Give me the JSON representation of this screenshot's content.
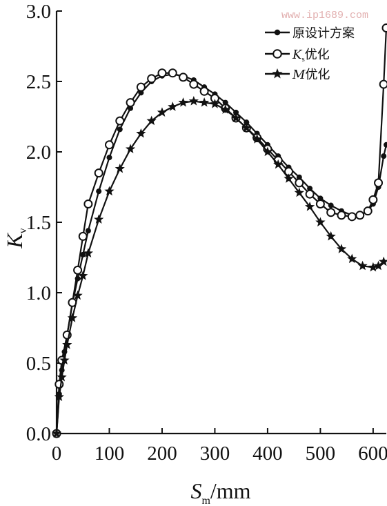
{
  "watermark": "www.ip1689.com",
  "chart_data": {
    "type": "line",
    "title": "",
    "xlabel": {
      "main": "S",
      "sub": "m",
      "unit": "/mm"
    },
    "ylabel": {
      "main": "K",
      "sub": "v"
    },
    "xlim": [
      0,
      625
    ],
    "ylim": [
      0.0,
      3.0
    ],
    "xticks": [
      0,
      100,
      200,
      300,
      400,
      500,
      600
    ],
    "yticks": [
      0.0,
      0.5,
      1.0,
      1.5,
      2.0,
      2.5,
      3.0
    ],
    "xtick_labels": [
      "0",
      "100",
      "200",
      "300",
      "400",
      "500",
      "600"
    ],
    "ytick_labels": [
      "0.0",
      "0.5",
      "1.0",
      "1.5",
      "2.0",
      "2.5",
      "3.0"
    ],
    "grid": false,
    "legend_position": "top-right",
    "series": [
      {
        "name": "原设计方案",
        "marker": "filled-circle",
        "x": [
          0,
          5,
          10,
          15,
          20,
          30,
          40,
          50,
          60,
          80,
          100,
          120,
          140,
          160,
          180,
          200,
          220,
          240,
          260,
          280,
          300,
          320,
          340,
          360,
          380,
          400,
          420,
          440,
          460,
          480,
          500,
          520,
          540,
          560,
          575,
          590,
          600,
          610,
          620,
          625
        ],
        "y": [
          0.0,
          0.28,
          0.45,
          0.58,
          0.7,
          0.92,
          1.1,
          1.27,
          1.44,
          1.72,
          1.96,
          2.16,
          2.31,
          2.42,
          2.5,
          2.54,
          2.55,
          2.54,
          2.51,
          2.46,
          2.41,
          2.35,
          2.28,
          2.21,
          2.13,
          2.05,
          1.97,
          1.89,
          1.82,
          1.74,
          1.67,
          1.62,
          1.58,
          1.55,
          1.55,
          1.58,
          1.63,
          1.75,
          1.97,
          2.05
        ]
      },
      {
        "name": "Ks优化",
        "label_main": "K",
        "label_sub": "s",
        "label_rest": "优化",
        "marker": "open-circle",
        "x": [
          0,
          5,
          10,
          20,
          30,
          40,
          50,
          60,
          80,
          100,
          120,
          140,
          160,
          180,
          200,
          220,
          240,
          260,
          280,
          300,
          320,
          340,
          360,
          380,
          400,
          420,
          440,
          460,
          480,
          500,
          520,
          540,
          560,
          575,
          590,
          600,
          610,
          620,
          625
        ],
        "y": [
          0.0,
          0.35,
          0.52,
          0.7,
          0.93,
          1.16,
          1.4,
          1.63,
          1.85,
          2.05,
          2.22,
          2.35,
          2.46,
          2.52,
          2.56,
          2.56,
          2.53,
          2.48,
          2.43,
          2.38,
          2.31,
          2.24,
          2.17,
          2.1,
          2.02,
          1.94,
          1.86,
          1.78,
          1.7,
          1.63,
          1.57,
          1.55,
          1.54,
          1.55,
          1.58,
          1.66,
          1.78,
          2.48,
          2.88
        ]
      },
      {
        "name": "M优化",
        "label_main": "M",
        "label_rest": "优化",
        "marker": "star",
        "x": [
          0,
          5,
          10,
          15,
          20,
          30,
          40,
          50,
          60,
          80,
          100,
          120,
          140,
          160,
          180,
          200,
          220,
          240,
          260,
          280,
          300,
          320,
          340,
          360,
          380,
          400,
          420,
          440,
          460,
          480,
          500,
          520,
          540,
          560,
          580,
          600,
          610,
          620
        ],
        "y": [
          0.0,
          0.26,
          0.4,
          0.52,
          0.63,
          0.82,
          0.98,
          1.12,
          1.28,
          1.52,
          1.72,
          1.88,
          2.02,
          2.13,
          2.22,
          2.28,
          2.32,
          2.35,
          2.36,
          2.35,
          2.34,
          2.3,
          2.24,
          2.17,
          2.09,
          2.0,
          1.91,
          1.81,
          1.71,
          1.61,
          1.5,
          1.4,
          1.31,
          1.24,
          1.19,
          1.18,
          1.19,
          1.22
        ]
      }
    ]
  }
}
